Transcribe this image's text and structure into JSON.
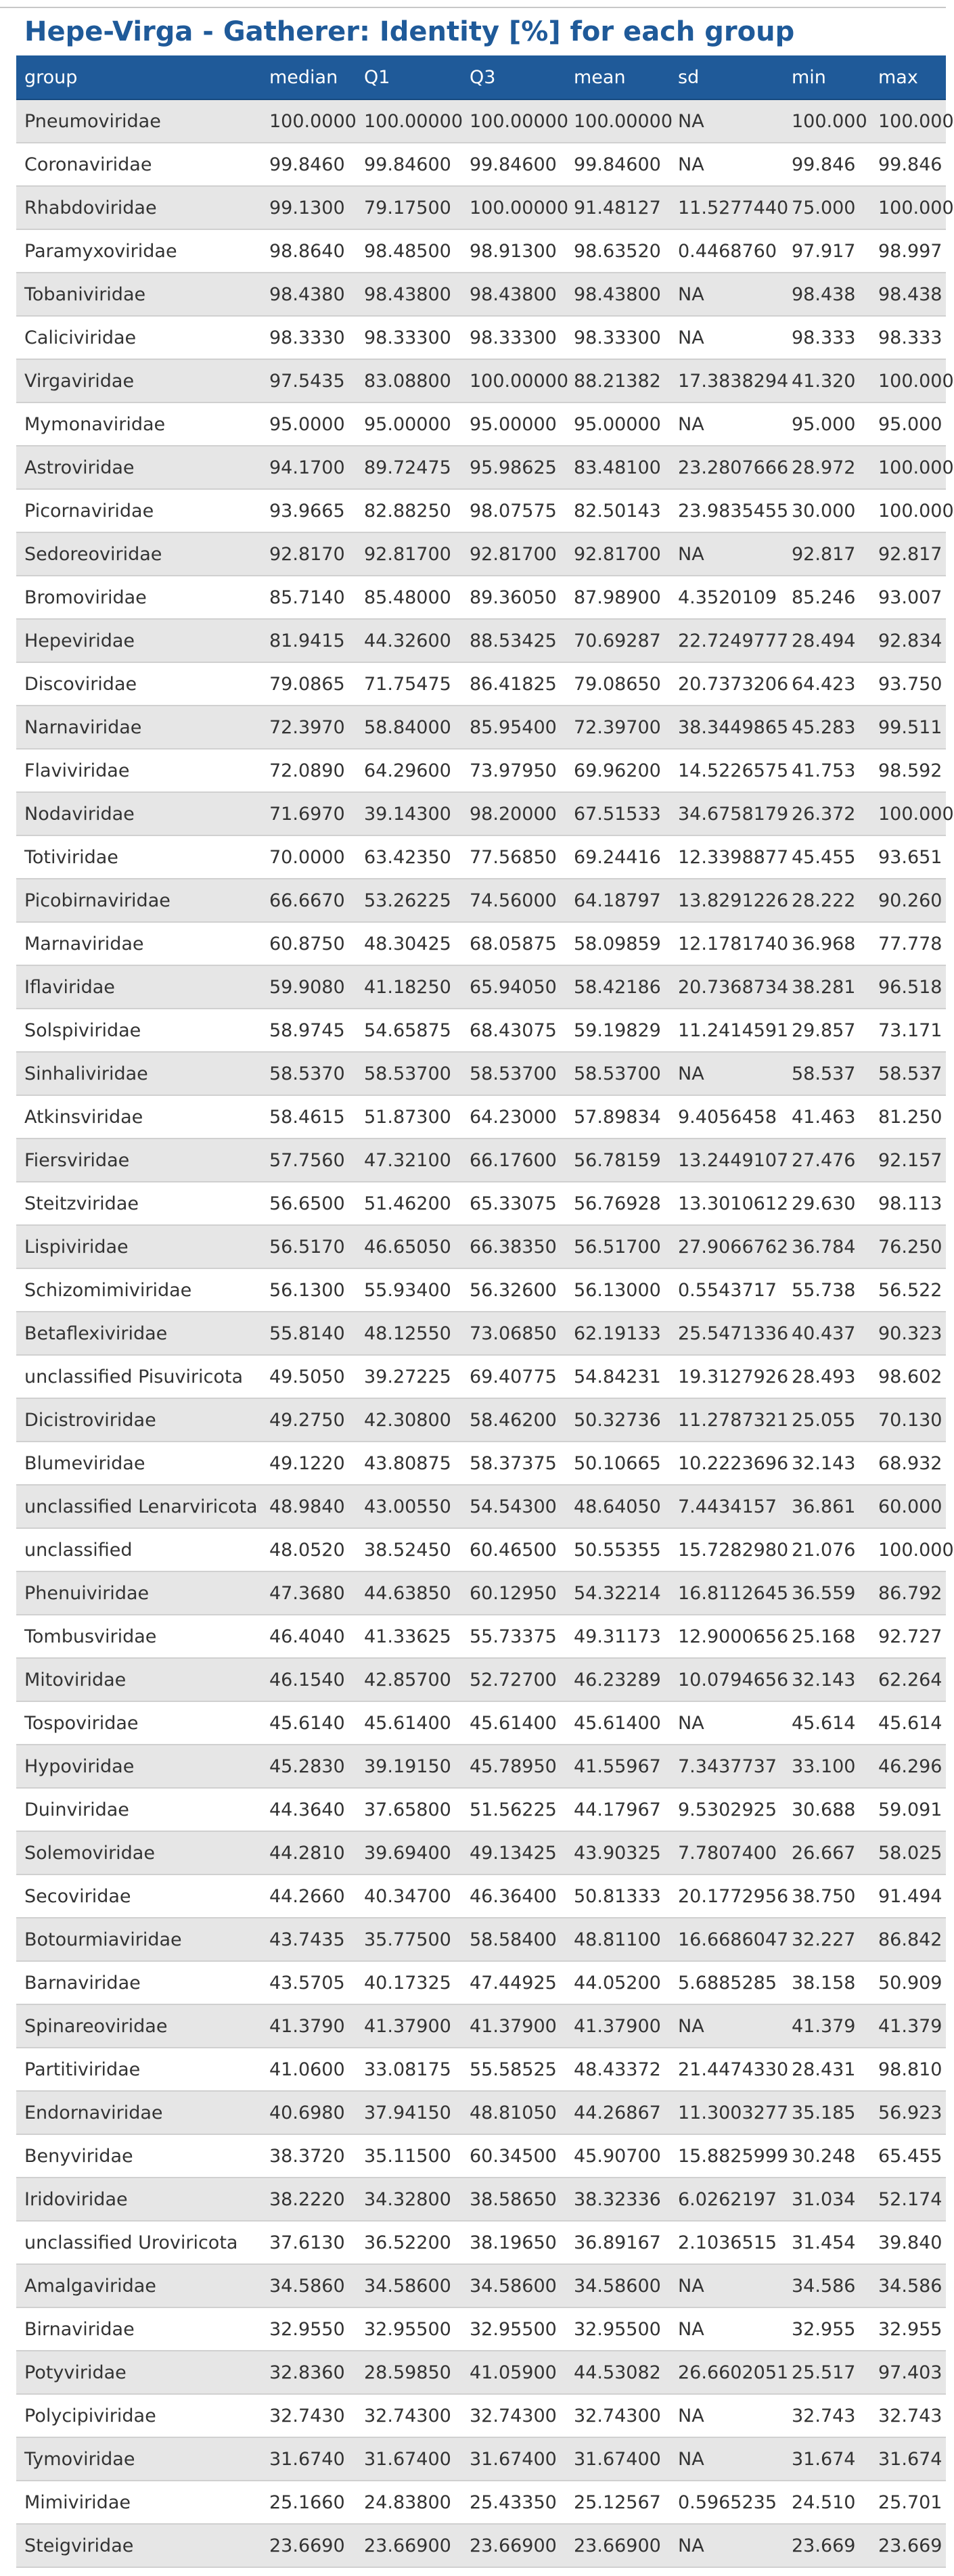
{
  "page": {
    "title": "Hepe-Virga - Gatherer: Identity [%] for each group"
  },
  "table": {
    "columns": [
      "group",
      "median",
      "Q1",
      "Q3",
      "mean",
      "sd",
      "min",
      "max"
    ],
    "rows": [
      [
        "Pneumoviridae",
        "100.0000",
        "100.00000",
        "100.00000",
        "100.00000",
        "NA",
        "100.000",
        "100.000"
      ],
      [
        "Coronaviridae",
        "99.8460",
        "99.84600",
        "99.84600",
        "99.84600",
        "NA",
        "99.846",
        "99.846"
      ],
      [
        "Rhabdoviridae",
        "99.1300",
        "79.17500",
        "100.00000",
        "91.48127",
        "11.5277440",
        "75.000",
        "100.000"
      ],
      [
        "Paramyxoviridae",
        "98.8640",
        "98.48500",
        "98.91300",
        "98.63520",
        "0.4468760",
        "97.917",
        "98.997"
      ],
      [
        "Tobaniviridae",
        "98.4380",
        "98.43800",
        "98.43800",
        "98.43800",
        "NA",
        "98.438",
        "98.438"
      ],
      [
        "Caliciviridae",
        "98.3330",
        "98.33300",
        "98.33300",
        "98.33300",
        "NA",
        "98.333",
        "98.333"
      ],
      [
        "Virgaviridae",
        "97.5435",
        "83.08800",
        "100.00000",
        "88.21382",
        "17.3838294",
        "41.320",
        "100.000"
      ],
      [
        "Mymonaviridae",
        "95.0000",
        "95.00000",
        "95.00000",
        "95.00000",
        "NA",
        "95.000",
        "95.000"
      ],
      [
        "Astroviridae",
        "94.1700",
        "89.72475",
        "95.98625",
        "83.48100",
        "23.2807666",
        "28.972",
        "100.000"
      ],
      [
        "Picornaviridae",
        "93.9665",
        "82.88250",
        "98.07575",
        "82.50143",
        "23.9835455",
        "30.000",
        "100.000"
      ],
      [
        "Sedoreoviridae",
        "92.8170",
        "92.81700",
        "92.81700",
        "92.81700",
        "NA",
        "92.817",
        "92.817"
      ],
      [
        "Bromoviridae",
        "85.7140",
        "85.48000",
        "89.36050",
        "87.98900",
        "4.3520109",
        "85.246",
        "93.007"
      ],
      [
        "Hepeviridae",
        "81.9415",
        "44.32600",
        "88.53425",
        "70.69287",
        "22.7249777",
        "28.494",
        "92.834"
      ],
      [
        "Discoviridae",
        "79.0865",
        "71.75475",
        "86.41825",
        "79.08650",
        "20.7373206",
        "64.423",
        "93.750"
      ],
      [
        "Narnaviridae",
        "72.3970",
        "58.84000",
        "85.95400",
        "72.39700",
        "38.3449865",
        "45.283",
        "99.511"
      ],
      [
        "Flaviviridae",
        "72.0890",
        "64.29600",
        "73.97950",
        "69.96200",
        "14.5226575",
        "41.753",
        "98.592"
      ],
      [
        "Nodaviridae",
        "71.6970",
        "39.14300",
        "98.20000",
        "67.51533",
        "34.6758179",
        "26.372",
        "100.000"
      ],
      [
        "Totiviridae",
        "70.0000",
        "63.42350",
        "77.56850",
        "69.24416",
        "12.3398877",
        "45.455",
        "93.651"
      ],
      [
        "Picobirnaviridae",
        "66.6670",
        "53.26225",
        "74.56000",
        "64.18797",
        "13.8291226",
        "28.222",
        "90.260"
      ],
      [
        "Marnaviridae",
        "60.8750",
        "48.30425",
        "68.05875",
        "58.09859",
        "12.1781740",
        "36.968",
        "77.778"
      ],
      [
        "Iflaviridae",
        "59.9080",
        "41.18250",
        "65.94050",
        "58.42186",
        "20.7368734",
        "38.281",
        "96.518"
      ],
      [
        "Solspiviridae",
        "58.9745",
        "54.65875",
        "68.43075",
        "59.19829",
        "11.2414591",
        "29.857",
        "73.171"
      ],
      [
        "Sinhaliviridae",
        "58.5370",
        "58.53700",
        "58.53700",
        "58.53700",
        "NA",
        "58.537",
        "58.537"
      ],
      [
        "Atkinsviridae",
        "58.4615",
        "51.87300",
        "64.23000",
        "57.89834",
        "9.4056458",
        "41.463",
        "81.250"
      ],
      [
        "Fiersviridae",
        "57.7560",
        "47.32100",
        "66.17600",
        "56.78159",
        "13.2449107",
        "27.476",
        "92.157"
      ],
      [
        "Steitzviridae",
        "56.6500",
        "51.46200",
        "65.33075",
        "56.76928",
        "13.3010612",
        "29.630",
        "98.113"
      ],
      [
        "Lispiviridae",
        "56.5170",
        "46.65050",
        "66.38350",
        "56.51700",
        "27.9066762",
        "36.784",
        "76.250"
      ],
      [
        "Schizomimiviridae",
        "56.1300",
        "55.93400",
        "56.32600",
        "56.13000",
        "0.5543717",
        "55.738",
        "56.522"
      ],
      [
        "Betaflexiviridae",
        "55.8140",
        "48.12550",
        "73.06850",
        "62.19133",
        "25.5471336",
        "40.437",
        "90.323"
      ],
      [
        "unclassified Pisuviricota",
        "49.5050",
        "39.27225",
        "69.40775",
        "54.84231",
        "19.3127926",
        "28.493",
        "98.602"
      ],
      [
        "Dicistroviridae",
        "49.2750",
        "42.30800",
        "58.46200",
        "50.32736",
        "11.2787321",
        "25.055",
        "70.130"
      ],
      [
        "Blumeviridae",
        "49.1220",
        "43.80875",
        "58.37375",
        "50.10665",
        "10.2223696",
        "32.143",
        "68.932"
      ],
      [
        "unclassified Lenarviricota",
        "48.9840",
        "43.00550",
        "54.54300",
        "48.64050",
        "7.4434157",
        "36.861",
        "60.000"
      ],
      [
        "unclassified",
        "48.0520",
        "38.52450",
        "60.46500",
        "50.55355",
        "15.7282980",
        "21.076",
        "100.000"
      ],
      [
        "Phenuiviridae",
        "47.3680",
        "44.63850",
        "60.12950",
        "54.32214",
        "16.8112645",
        "36.559",
        "86.792"
      ],
      [
        "Tombusviridae",
        "46.4040",
        "41.33625",
        "55.73375",
        "49.31173",
        "12.9000656",
        "25.168",
        "92.727"
      ],
      [
        "Mitoviridae",
        "46.1540",
        "42.85700",
        "52.72700",
        "46.23289",
        "10.0794656",
        "32.143",
        "62.264"
      ],
      [
        "Tospoviridae",
        "45.6140",
        "45.61400",
        "45.61400",
        "45.61400",
        "NA",
        "45.614",
        "45.614"
      ],
      [
        "Hypoviridae",
        "45.2830",
        "39.19150",
        "45.78950",
        "41.55967",
        "7.3437737",
        "33.100",
        "46.296"
      ],
      [
        "Duinviridae",
        "44.3640",
        "37.65800",
        "51.56225",
        "44.17967",
        "9.5302925",
        "30.688",
        "59.091"
      ],
      [
        "Solemoviridae",
        "44.2810",
        "39.69400",
        "49.13425",
        "43.90325",
        "7.7807400",
        "26.667",
        "58.025"
      ],
      [
        "Secoviridae",
        "44.2660",
        "40.34700",
        "46.36400",
        "50.81333",
        "20.1772956",
        "38.750",
        "91.494"
      ],
      [
        "Botourmiaviridae",
        "43.7435",
        "35.77500",
        "58.58400",
        "48.81100",
        "16.6686047",
        "32.227",
        "86.842"
      ],
      [
        "Barnaviridae",
        "43.5705",
        "40.17325",
        "47.44925",
        "44.05200",
        "5.6885285",
        "38.158",
        "50.909"
      ],
      [
        "Spinareoviridae",
        "41.3790",
        "41.37900",
        "41.37900",
        "41.37900",
        "NA",
        "41.379",
        "41.379"
      ],
      [
        "Partitiviridae",
        "41.0600",
        "33.08175",
        "55.58525",
        "48.43372",
        "21.4474330",
        "28.431",
        "98.810"
      ],
      [
        "Endornaviridae",
        "40.6980",
        "37.94150",
        "48.81050",
        "44.26867",
        "11.3003277",
        "35.185",
        "56.923"
      ],
      [
        "Benyviridae",
        "38.3720",
        "35.11500",
        "60.34500",
        "45.90700",
        "15.8825999",
        "30.248",
        "65.455"
      ],
      [
        "Iridoviridae",
        "38.2220",
        "34.32800",
        "38.58650",
        "38.32336",
        "6.0262197",
        "31.034",
        "52.174"
      ],
      [
        "unclassified Uroviricota",
        "37.6130",
        "36.52200",
        "38.19650",
        "36.89167",
        "2.1036515",
        "31.454",
        "39.840"
      ],
      [
        "Amalgaviridae",
        "34.5860",
        "34.58600",
        "34.58600",
        "34.58600",
        "NA",
        "34.586",
        "34.586"
      ],
      [
        "Birnaviridae",
        "32.9550",
        "32.95500",
        "32.95500",
        "32.95500",
        "NA",
        "32.955",
        "32.955"
      ],
      [
        "Potyviridae",
        "32.8360",
        "28.59850",
        "41.05900",
        "44.53082",
        "26.6602051",
        "25.517",
        "97.403"
      ],
      [
        "Polycipiviridae",
        "32.7430",
        "32.74300",
        "32.74300",
        "32.74300",
        "NA",
        "32.743",
        "32.743"
      ],
      [
        "Tymoviridae",
        "31.6740",
        "31.67400",
        "31.67400",
        "31.67400",
        "NA",
        "31.674",
        "31.674"
      ],
      [
        "Mimiviridae",
        "25.1660",
        "24.83800",
        "25.43350",
        "25.12567",
        "0.5965235",
        "24.510",
        "25.701"
      ],
      [
        "Steigviridae",
        "23.6690",
        "23.66900",
        "23.66900",
        "23.66900",
        "NA",
        "23.669",
        "23.669"
      ]
    ]
  }
}
